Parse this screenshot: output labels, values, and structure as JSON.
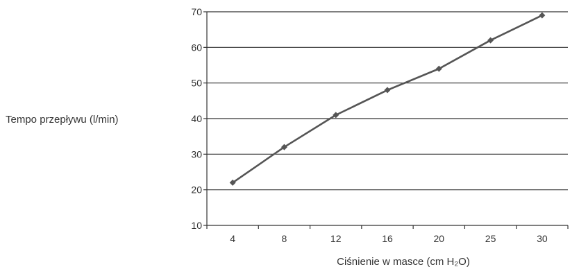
{
  "chart_data": {
    "type": "line",
    "categories": [
      "4",
      "8",
      "12",
      "16",
      "20",
      "25",
      "30"
    ],
    "series": [
      {
        "values": [
          22,
          32,
          41,
          48,
          54,
          62,
          69
        ]
      }
    ],
    "xlabel": "Ciśnienie w masce (cm H₂O)",
    "ylabel": "Tempo przepływu (l/min)",
    "ylim": [
      10,
      70
    ],
    "yticks": [
      10,
      20,
      30,
      40,
      50,
      60,
      70
    ],
    "grid": true,
    "colors": {
      "line": "#555555",
      "marker": "#555555",
      "grid": "#333333",
      "axis": "#333333"
    }
  }
}
